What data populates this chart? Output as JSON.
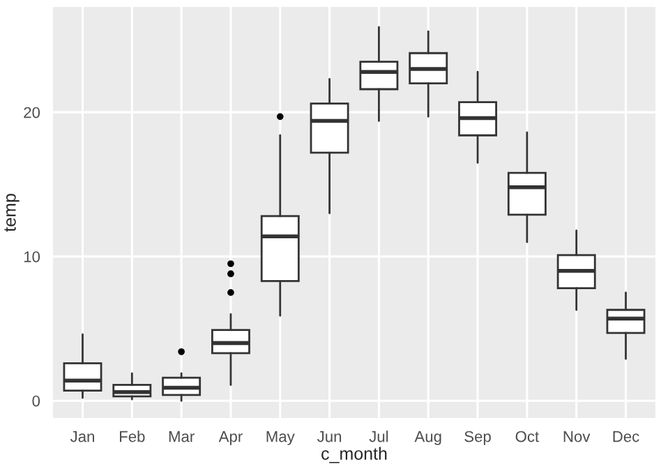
{
  "chart_data": {
    "type": "box",
    "xlabel": "c_month",
    "ylabel": "temp",
    "categories": [
      "Jan",
      "Feb",
      "Mar",
      "Apr",
      "May",
      "Jun",
      "Jul",
      "Aug",
      "Sep",
      "Oct",
      "Nov",
      "Dec"
    ],
    "boxes": [
      {
        "low": 0.2,
        "q1": 0.7,
        "median": 1.4,
        "q3": 2.6,
        "high": 4.6
      },
      {
        "low": 0.1,
        "q1": 0.3,
        "median": 0.6,
        "q3": 1.1,
        "high": 1.9
      },
      {
        "low": 0.0,
        "q1": 0.4,
        "median": 0.9,
        "q3": 1.6,
        "high": 1.9,
        "outliers": [
          3.4
        ]
      },
      {
        "low": 1.1,
        "q1": 3.3,
        "median": 4.0,
        "q3": 4.9,
        "high": 6.0,
        "outliers": [
          7.5,
          8.8,
          9.5
        ]
      },
      {
        "low": 5.9,
        "q1": 8.3,
        "median": 11.4,
        "q3": 12.8,
        "high": 18.4,
        "outliers": [
          19.7
        ]
      },
      {
        "low": 13.0,
        "q1": 17.2,
        "median": 19.4,
        "q3": 20.6,
        "high": 22.3
      },
      {
        "low": 19.4,
        "q1": 21.6,
        "median": 22.8,
        "q3": 23.5,
        "high": 25.9
      },
      {
        "low": 19.7,
        "q1": 22.0,
        "median": 23.0,
        "q3": 24.1,
        "high": 25.6
      },
      {
        "low": 16.5,
        "q1": 18.4,
        "median": 19.6,
        "q3": 20.7,
        "high": 22.8
      },
      {
        "low": 11.0,
        "q1": 12.9,
        "median": 14.8,
        "q3": 15.8,
        "high": 18.6
      },
      {
        "low": 6.3,
        "q1": 7.8,
        "median": 9.0,
        "q3": 10.1,
        "high": 11.8
      },
      {
        "low": 2.9,
        "q1": 4.7,
        "median": 5.7,
        "q3": 6.3,
        "high": 7.5
      }
    ],
    "ylim": [
      -1.2,
      27.3
    ],
    "yticks": [
      0,
      10,
      20
    ],
    "grid": true
  }
}
